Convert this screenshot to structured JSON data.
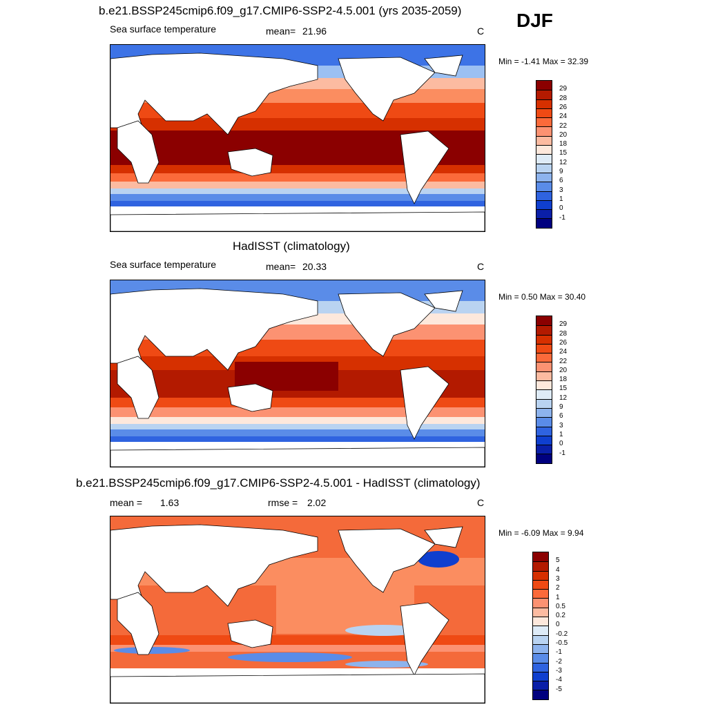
{
  "season": "DJF",
  "panel1": {
    "title": "b.e21.BSSP245cmip6.f09_g17.CMIP6-SSP2-4.5.001 (yrs 2035-2059)",
    "left_label": "Sea surface temperature",
    "mean_label": "mean=",
    "mean_value": "21.96",
    "unit": "C",
    "minmax": "Min =  -1.41 Max =  32.39"
  },
  "panel2": {
    "title": "HadISST (climatology)",
    "left_label": "Sea surface temperature",
    "mean_label": "mean=",
    "mean_value": "20.33",
    "unit": "C",
    "minmax": "Min =   0.50 Max =  30.40"
  },
  "panel3": {
    "title": "b.e21.BSSP245cmip6.f09_g17.CMIP6-SSP2-4.5.001 - HadISST (climatology)",
    "mean_label": "mean =",
    "mean_value": "1.63",
    "rmse_label": "rmse =",
    "rmse_value": "2.02",
    "unit": "C",
    "minmax": "Min =  -6.09 Max =   9.94"
  },
  "sst_colorbar": {
    "labels": [
      "29",
      "28",
      "26",
      "24",
      "22",
      "20",
      "18",
      "15",
      "12",
      "9",
      "6",
      "3",
      "1",
      "0",
      "-1"
    ],
    "colors": [
      "#8b0000",
      "#b31a00",
      "#d63000",
      "#ef4a14",
      "#fb6a3a",
      "#fc9272",
      "#fcbba1",
      "#fde8dc",
      "#deebf7",
      "#b9d3f1",
      "#8db3ed",
      "#5a8ce8",
      "#2f63e0",
      "#0f3fcf",
      "#0a1fa8",
      "#00007f"
    ]
  },
  "diff_colorbar": {
    "labels": [
      "5",
      "4",
      "3",
      "2",
      "1",
      "0.5",
      "0.2",
      "0",
      "-0.2",
      "-0.5",
      "-1",
      "-2",
      "-3",
      "-4",
      "-5"
    ],
    "colors": [
      "#8b0000",
      "#b31a00",
      "#d63000",
      "#ef4a14",
      "#fb6a3a",
      "#fc9272",
      "#fcbba1",
      "#fde8dc",
      "#deebf7",
      "#b9d3f1",
      "#8db3ed",
      "#5a8ce8",
      "#2f63e0",
      "#0f3fcf",
      "#0a1fa8",
      "#00007f"
    ]
  }
}
